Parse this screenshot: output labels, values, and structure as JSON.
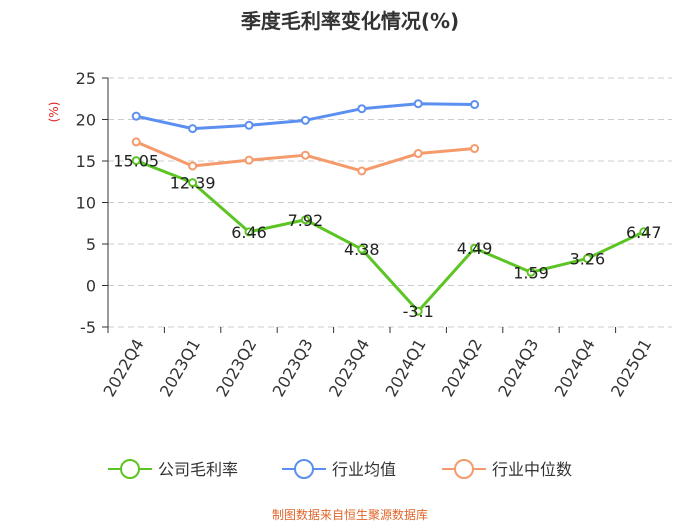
{
  "chart_data": {
    "type": "line",
    "title": "季度毛利率变化情况(%)",
    "ylabel": "(%)",
    "xlabel": "",
    "ylim": [
      -5,
      25
    ],
    "yticks": [
      -5,
      0,
      5,
      10,
      15,
      20,
      25
    ],
    "categories": [
      "2022Q4",
      "2023Q1",
      "2023Q2",
      "2023Q3",
      "2023Q4",
      "2024Q1",
      "2024Q2",
      "2024Q3",
      "2024Q4",
      "2025Q1"
    ],
    "grid": "horizontal-dashed",
    "legend_position": "bottom",
    "series": [
      {
        "name": "公司毛利率",
        "color": "#5cc523",
        "values": [
          15.05,
          12.39,
          6.46,
          7.92,
          4.38,
          -3.1,
          4.49,
          1.59,
          3.26,
          6.47
        ],
        "labels": [
          "15.05",
          "12.39",
          "6.46",
          "7.92",
          "4.38",
          "-3.1",
          "4.49",
          "1.59",
          "3.26",
          "6.47"
        ]
      },
      {
        "name": "行业均值",
        "color": "#5b8ff0",
        "values": [
          20.4,
          18.9,
          19.3,
          19.9,
          21.3,
          21.9,
          21.8,
          null,
          null,
          null
        ]
      },
      {
        "name": "行业中位数",
        "color": "#f59a6a",
        "values": [
          17.3,
          14.4,
          15.1,
          15.7,
          13.8,
          15.9,
          16.5,
          null,
          null,
          null
        ]
      }
    ]
  },
  "footer": "制图数据来自恒生聚源数据库"
}
